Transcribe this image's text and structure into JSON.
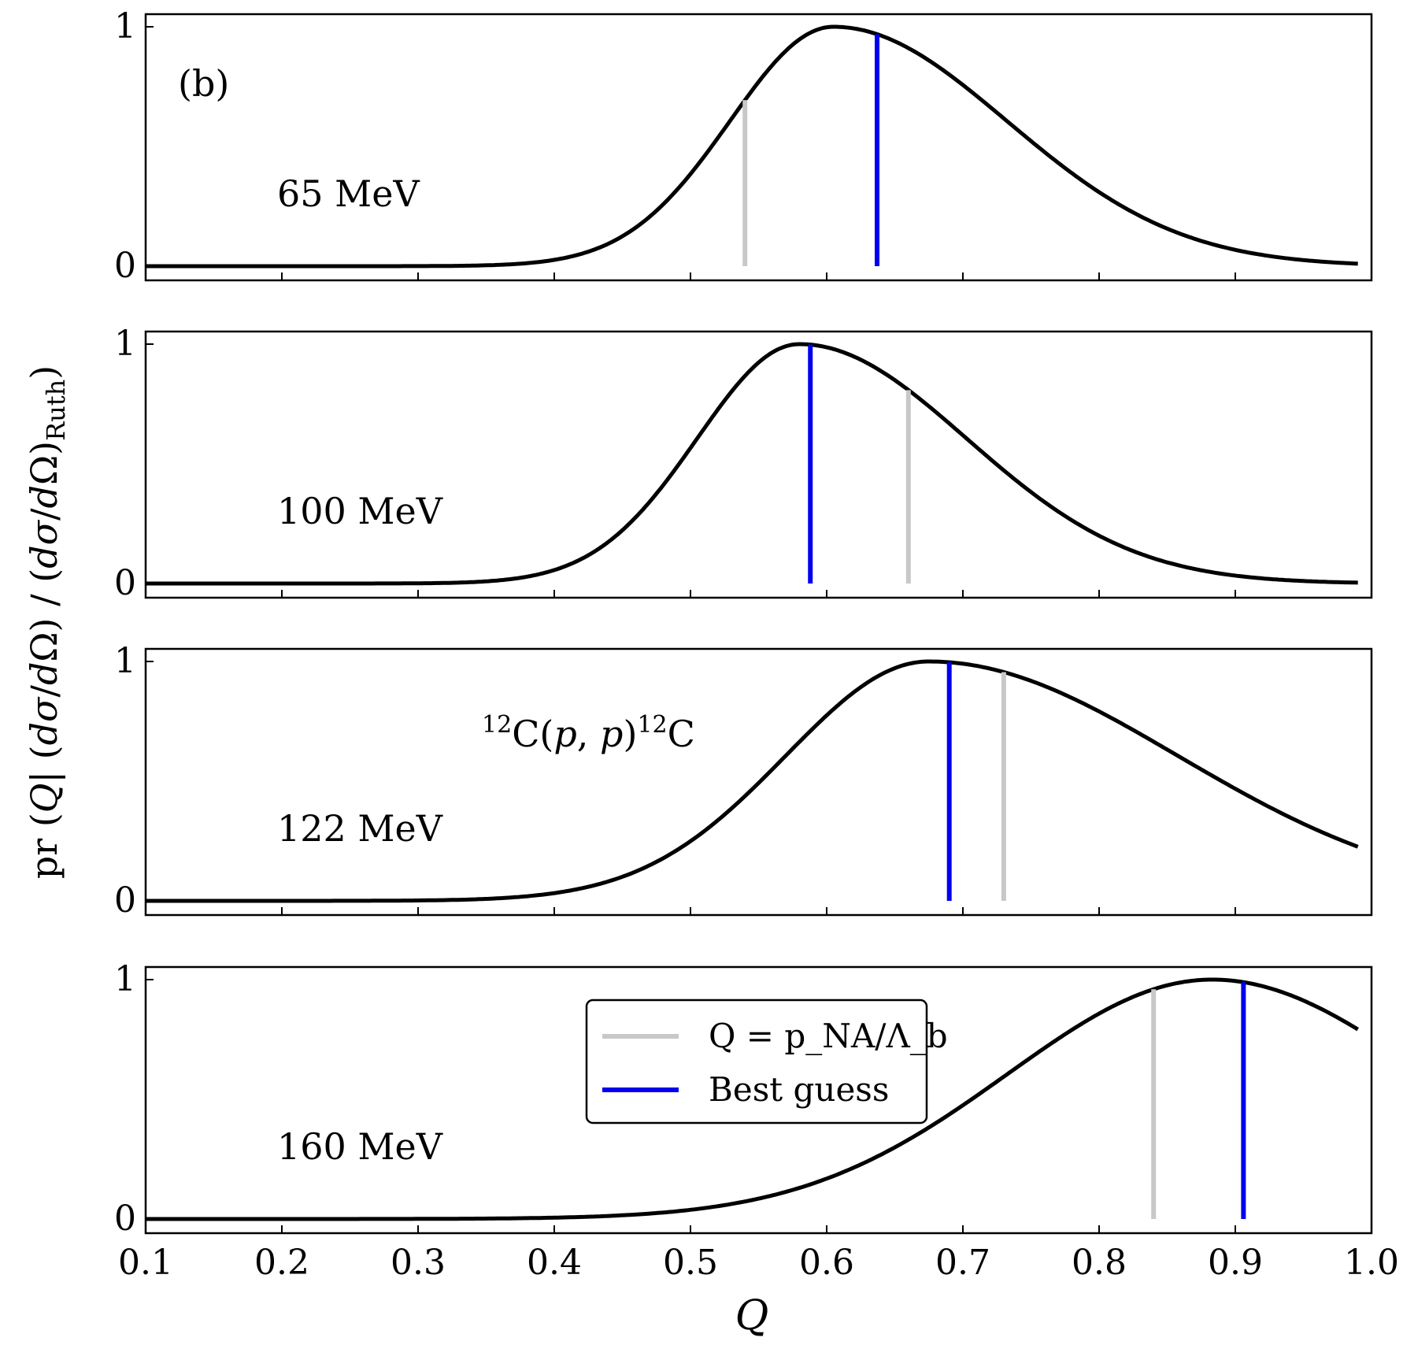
{
  "chart_data": {
    "type": "line",
    "panel_letter": "(b)",
    "xlabel": "Q",
    "ylabel": "pr (Q| (dσ/dΩ) / (dσ/dΩ)_Ruth)",
    "xlim": [
      0.1,
      1.0
    ],
    "ylim": [
      0,
      1
    ],
    "x_ticks": [
      "0.1",
      "0.2",
      "0.3",
      "0.4",
      "0.5",
      "0.6",
      "0.7",
      "0.8",
      "0.9",
      "1.0"
    ],
    "y_ticks": [
      "0",
      "1"
    ],
    "reaction_label": "12C(p,p)12C",
    "legend": {
      "placement": "bottom panel, center",
      "entries": [
        {
          "label": "Q = p_NA/Λ_b",
          "color": "#c8c8c8"
        },
        {
          "label": "Best guess",
          "color": "#0000ee"
        }
      ]
    },
    "colors": {
      "curve": "#000000",
      "q_line": "#c8c8c8",
      "best_guess": "#0000ee"
    },
    "panels": [
      {
        "energy_label": "65 MeV",
        "peak_q": 0.605,
        "width_left": 0.076,
        "width_right": 0.108,
        "q_value": 0.54,
        "best_guess": 0.637
      },
      {
        "energy_label": "100 MeV",
        "peak_q": 0.58,
        "width_left": 0.075,
        "width_right": 0.104,
        "q_value": 0.66,
        "best_guess": 0.588
      },
      {
        "energy_label": "122 MeV",
        "peak_q": 0.675,
        "width_left": 0.105,
        "width_right": 0.155,
        "q_value": 0.73,
        "best_guess": 0.69
      },
      {
        "energy_label": "160 MeV",
        "peak_q": 0.883,
        "width_left": 0.15,
        "width_right": 0.133,
        "q_value": 0.84,
        "best_guess": 0.906
      }
    ]
  }
}
